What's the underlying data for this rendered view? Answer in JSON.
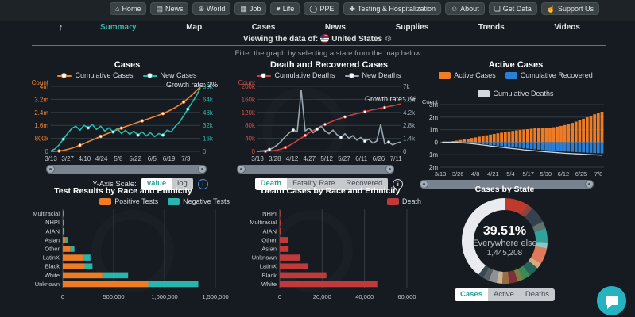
{
  "nav": {
    "arrow": "↑",
    "gear_icon": "⚙",
    "buttons": [
      {
        "label": "Home",
        "icon": "⌂"
      },
      {
        "label": "News",
        "icon": "▤"
      },
      {
        "label": "World",
        "icon": "⊕"
      },
      {
        "label": "Job",
        "icon": "▦"
      },
      {
        "label": "Life",
        "icon": "♥"
      },
      {
        "label": "PPE",
        "icon": "◯"
      },
      {
        "label": "Testing & Hospitalization",
        "icon": "✚"
      },
      {
        "label": "About",
        "icon": "☺"
      },
      {
        "label": "Get Data",
        "icon": "❏"
      },
      {
        "label": "Support Us",
        "icon": "☝"
      }
    ],
    "tabs": [
      {
        "label": "Summary",
        "active": true
      },
      {
        "label": "Map",
        "active": false
      },
      {
        "label": "Cases",
        "active": false
      },
      {
        "label": "News",
        "active": false
      },
      {
        "label": "Supplies",
        "active": false
      },
      {
        "label": "Trends",
        "active": false
      },
      {
        "label": "Videos",
        "active": false
      }
    ],
    "viewing": {
      "prefix": "Viewing the data of:",
      "country": "United States"
    }
  },
  "hint": "Filter the graph by selecting a state from the map below",
  "controls": {
    "y_axis_scale": {
      "label": "Y-Axis Scale:",
      "options": [
        "value",
        "log"
      ],
      "active": "value"
    },
    "death_tabs": {
      "options": [
        "Death",
        "Fatality Rate",
        "Recovered"
      ],
      "active": "Death"
    },
    "state_tabs": {
      "options": [
        "Cases",
        "Active",
        "Deaths"
      ],
      "active": "Cases"
    }
  },
  "chart_data": [
    {
      "type": "line",
      "title": "Cases",
      "growth_label": "Growth rate: 2%",
      "left_axis": {
        "label": "Count",
        "color": "#ef8432",
        "ticks": [
          "4m",
          "3.2m",
          "2.4m",
          "1.6m",
          "800k",
          "0"
        ],
        "max": 4000000
      },
      "right_axis": {
        "color": "#2ab6ad",
        "ticks": [
          "80k",
          "64k",
          "48k",
          "32k",
          "16k",
          "0"
        ],
        "max": 80000
      },
      "x_ticks": [
        "3/13",
        "3/27",
        "4/10",
        "4/24",
        "5/8",
        "5/22",
        "6/5",
        "6/19",
        "7/3"
      ],
      "series": [
        {
          "name": "Cumulative Cases",
          "axis": "left",
          "color": "#ef8432",
          "values": [
            2000,
            8000,
            25000,
            60000,
            120000,
            190000,
            280000,
            380000,
            480000,
            590000,
            700000,
            810000,
            920000,
            1030000,
            1130000,
            1230000,
            1330000,
            1430000,
            1520000,
            1610000,
            1700000,
            1790000,
            1880000,
            1960000,
            2050000,
            2140000,
            2230000,
            2330000,
            2440000,
            2560000,
            2700000,
            2860000,
            3040000,
            3250000,
            3480000,
            3720000,
            3960000
          ]
        },
        {
          "name": "New Cases",
          "axis": "right",
          "color": "#2ab6ad",
          "values": [
            500,
            3000,
            8000,
            15000,
            22000,
            28000,
            31000,
            26000,
            32000,
            29000,
            33000,
            27000,
            31000,
            25000,
            29000,
            24000,
            28000,
            22000,
            26000,
            21000,
            25000,
            20000,
            24000,
            19000,
            23000,
            18000,
            22000,
            20000,
            26000,
            24000,
            31000,
            36000,
            44000,
            52000,
            60000,
            68000,
            78000
          ]
        }
      ]
    },
    {
      "type": "line",
      "title": "Death and Recovered Cases",
      "growth_label": "Growth rate: 1%",
      "left_axis": {
        "label": "Count",
        "color": "#d4504c",
        "ticks": [
          "200k",
          "160k",
          "120k",
          "80k",
          "40k",
          "0"
        ],
        "max": 200000
      },
      "right_axis": {
        "color": "#9aa6b2",
        "ticks": [
          "7k",
          "5.6k",
          "4.2k",
          "2.8k",
          "1.4k",
          "0"
        ],
        "max": 7000
      },
      "x_ticks": [
        "3/13",
        "3/28",
        "4/12",
        "4/27",
        "5/12",
        "5/27",
        "6/11",
        "6/26",
        "7/11"
      ],
      "series": [
        {
          "name": "Cumulative Deaths",
          "axis": "left",
          "color": "#c8413e",
          "values": [
            0,
            100,
            300,
            900,
            2000,
            4000,
            7000,
            12000,
            18000,
            25000,
            33000,
            41000,
            49000,
            57000,
            64000,
            71000,
            77000,
            83000,
            88000,
            93000,
            98000,
            102000,
            106000,
            110000,
            113000,
            116000,
            119000,
            122000,
            125000,
            128000,
            130000,
            133000,
            135000,
            138000,
            140000,
            143000,
            146000
          ]
        },
        {
          "name": "New Deaths",
          "axis": "right",
          "color": "#9aa6b2",
          "values": [
            10,
            30,
            80,
            200,
            400,
            700,
            1100,
            1600,
            2000,
            2300,
            2100,
            6600,
            2200,
            2500,
            2000,
            2400,
            2700,
            2200,
            1900,
            2300,
            1800,
            1500,
            1900,
            1400,
            1700,
            1200,
            1500,
            1100,
            1300,
            900,
            1100,
            2900,
            800,
            1000,
            700,
            900,
            1000
          ]
        }
      ]
    },
    {
      "type": "bar",
      "title": "Active Cases",
      "left_axis": {
        "label": "Count",
        "color": "#ccd2d6",
        "ticks": [
          "3m",
          "2m",
          "1m",
          "0",
          "1m",
          "2m"
        ],
        "up_max": 3000000,
        "down_max": 2000000
      },
      "x_ticks": [
        "3/13",
        "3/26",
        "4/8",
        "4/21",
        "5/4",
        "5/17",
        "5/30",
        "6/12",
        "6/25",
        "7/8"
      ],
      "series": [
        {
          "name": "Active Cases",
          "color": "#ef7b25",
          "values": [
            10000,
            20000,
            40000,
            80000,
            120000,
            170000,
            220000,
            280000,
            330000,
            380000,
            440000,
            500000,
            550000,
            610000,
            660000,
            710000,
            760000,
            810000,
            860000,
            900000,
            940000,
            980000,
            1010000,
            1040000,
            1070000,
            1100000,
            1130000,
            1100000,
            1120000,
            1150000,
            1190000,
            1240000,
            1300000,
            1370000,
            1450000,
            1540000,
            1640000,
            1750000,
            1870000,
            1990000,
            2110000,
            2230000,
            2340000,
            2430000
          ]
        },
        {
          "name": "Cumulative Recovered",
          "color": "#2a7fd6",
          "values": [
            0,
            2000,
            5000,
            10000,
            20000,
            35000,
            50000,
            70000,
            90000,
            115000,
            140000,
            165000,
            195000,
            225000,
            255000,
            285000,
            315000,
            345000,
            375000,
            405000,
            435000,
            465000,
            495000,
            520000,
            545000,
            570000,
            595000,
            620000,
            645000,
            665000,
            685000,
            705000,
            725000,
            745000,
            762000,
            778000,
            795000,
            810000,
            825000,
            840000,
            855000,
            868000,
            880000,
            892000
          ]
        },
        {
          "name": "Cumulative Deaths",
          "color": "#d3d8dc",
          "values": [
            0,
            500,
            1500,
            4000,
            8000,
            13000,
            20000,
            28000,
            37000,
            46000,
            55000,
            63000,
            71000,
            78000,
            84000,
            90000,
            95000,
            100000,
            104000,
            108000,
            111000,
            114000,
            117000,
            120000,
            122000,
            124000,
            126000,
            128000,
            130000,
            132000,
            133000,
            135000,
            136000,
            138000,
            139000,
            140000,
            141000,
            142000,
            143000,
            144000,
            145000,
            146000,
            147000,
            148000
          ]
        }
      ]
    },
    {
      "type": "bar",
      "orientation": "horizontal",
      "title": "Test Results by Race and Ethnicity",
      "categories": [
        "Multiracial",
        "NHPI",
        "AIAN",
        "Asian",
        "Other",
        "LatinX",
        "Black",
        "White",
        "Unknown"
      ],
      "x_ticks": [
        "0",
        "500,000",
        "1,000,000",
        "1,500,000"
      ],
      "max": 1500000,
      "series": [
        {
          "name": "Positive Tests",
          "color": "#ef7b25",
          "values": [
            6000,
            1500,
            9000,
            26000,
            76000,
            208000,
            215000,
            390000,
            840000
          ]
        },
        {
          "name": "Negative Tests",
          "color": "#29b5ac",
          "values": [
            2500,
            800,
            3000,
            20000,
            38000,
            64000,
            77000,
            252000,
            492000
          ]
        }
      ]
    },
    {
      "type": "bar",
      "orientation": "horizontal",
      "title": "Death Cases by Race and Ethnicity",
      "categories": [
        "NHPI",
        "Multiracial",
        "AIAN",
        "Other",
        "Asian",
        "Unknown",
        "LatinX",
        "Black",
        "White"
      ],
      "x_ticks": [
        "0",
        "20,000",
        "40,000",
        "60,000"
      ],
      "max": 60000,
      "series": [
        {
          "name": "Death",
          "color": "#c0393b",
          "values": [
            150,
            400,
            700,
            3800,
            4200,
            9800,
            13500,
            22000,
            46000
          ]
        }
      ]
    },
    {
      "type": "pie",
      "title": "Cases by State",
      "center": {
        "pct": "39.51%",
        "label": "Everywhere else",
        "value": "1,445,208"
      },
      "segments": [
        {
          "value": 9.0,
          "color": "#c0392f"
        },
        {
          "value": 2.2,
          "color": "#8a4440"
        },
        {
          "value": 6.3,
          "color": "#33424e"
        },
        {
          "value": 2.8,
          "color": "#5e7370"
        },
        {
          "value": 5.2,
          "color": "#2fa29b"
        },
        {
          "value": 2.4,
          "color": "#8fc6bf"
        },
        {
          "value": 6.0,
          "color": "#e0795b"
        },
        {
          "value": 2.2,
          "color": "#d9a97e"
        },
        {
          "value": 3.8,
          "color": "#24655c"
        },
        {
          "value": 2.8,
          "color": "#3d8a57"
        },
        {
          "value": 2.4,
          "color": "#7c7f45"
        },
        {
          "value": 3.2,
          "color": "#7e3237"
        },
        {
          "value": 2.6,
          "color": "#9c6a45"
        },
        {
          "value": 2.2,
          "color": "#cbb693"
        },
        {
          "value": 3.0,
          "color": "#8d9297"
        },
        {
          "value": 2.4,
          "color": "#565f66"
        },
        {
          "value": 2.0,
          "color": "#3a4750"
        },
        {
          "value": 39.51,
          "color": "#e9ebee",
          "label": "Everywhere else"
        }
      ]
    }
  ]
}
